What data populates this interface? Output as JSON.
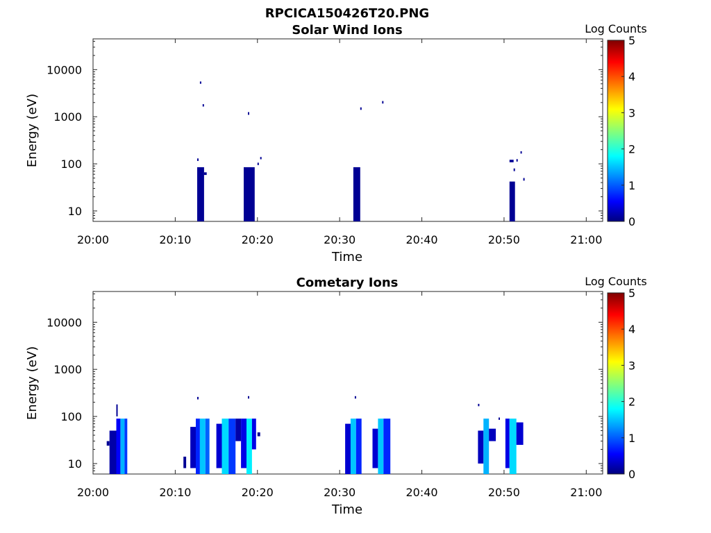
{
  "figure": {
    "title": "RPCICA150426T20.PNG"
  },
  "chart_data": [
    {
      "type": "heatmap",
      "title": "Solar Wind Ions",
      "xlabel": "Time",
      "ylabel": "Energy (eV)",
      "x_range": [
        "20:00",
        "21:02"
      ],
      "y_range_eV": [
        6,
        45000
      ],
      "y_scale": "log",
      "xticks": [
        "20:00",
        "20:10",
        "20:20",
        "20:30",
        "20:40",
        "20:50",
        "21:00"
      ],
      "yticks": [
        "10",
        "100",
        "1000",
        "10000"
      ],
      "grid": false,
      "colorbar": {
        "label": "Log Counts",
        "min": 0,
        "max": 5,
        "ticks": [
          "0",
          "1",
          "2",
          "3",
          "4",
          "5"
        ],
        "colormap": "jet"
      },
      "cells": [
        {
          "t": "20:12:40",
          "t_end": "20:13:30",
          "e_min": 6,
          "e_max": 85,
          "log_counts": 0.1
        },
        {
          "t": "20:12:40",
          "t_end": "20:12:50",
          "e_min": 115,
          "e_max": 130,
          "log_counts": 0.1
        },
        {
          "t": "20:13:30",
          "t_end": "20:13:50",
          "e_min": 58,
          "e_max": 66,
          "log_counts": 0.1
        },
        {
          "t": "20:13:00",
          "t_end": "20:13:10",
          "e_min": 5000,
          "e_max": 5600,
          "log_counts": 0.1
        },
        {
          "t": "20:13:20",
          "t_end": "20:13:30",
          "e_min": 1650,
          "e_max": 1850,
          "log_counts": 0.1
        },
        {
          "t": "20:18:20",
          "t_end": "20:19:40",
          "e_min": 6,
          "e_max": 85,
          "log_counts": 0.1
        },
        {
          "t": "20:18:50",
          "t_end": "20:19:00",
          "e_min": 1100,
          "e_max": 1250,
          "log_counts": 0.1
        },
        {
          "t": "20:20:00",
          "t_end": "20:20:10",
          "e_min": 94,
          "e_max": 106,
          "log_counts": 0.1
        },
        {
          "t": "20:20:20",
          "t_end": "20:20:30",
          "e_min": 125,
          "e_max": 140,
          "log_counts": 0.1
        },
        {
          "t": "20:31:40",
          "t_end": "20:32:30",
          "e_min": 6,
          "e_max": 85,
          "log_counts": 0.1
        },
        {
          "t": "20:32:30",
          "t_end": "20:32:40",
          "e_min": 1400,
          "e_max": 1580,
          "log_counts": 0.1
        },
        {
          "t": "20:35:10",
          "t_end": "20:35:20",
          "e_min": 1900,
          "e_max": 2150,
          "log_counts": 0.1
        },
        {
          "t": "20:50:40",
          "t_end": "20:51:20",
          "e_min": 6,
          "e_max": 42,
          "log_counts": 0.1
        },
        {
          "t": "20:50:40",
          "t_end": "20:51:10",
          "e_min": 108,
          "e_max": 122,
          "log_counts": 0.1
        },
        {
          "t": "20:51:10",
          "t_end": "20:51:20",
          "e_min": 70,
          "e_max": 80,
          "log_counts": 0.1
        },
        {
          "t": "20:51:30",
          "t_end": "20:51:40",
          "e_min": 112,
          "e_max": 126,
          "log_counts": 0.1
        },
        {
          "t": "20:52:00",
          "t_end": "20:52:10",
          "e_min": 165,
          "e_max": 185,
          "log_counts": 0.1
        },
        {
          "t": "20:52:20",
          "t_end": "20:52:30",
          "e_min": 44,
          "e_max": 50,
          "log_counts": 0.1
        }
      ]
    },
    {
      "type": "heatmap",
      "title": "Cometary Ions",
      "xlabel": "Time",
      "ylabel": "Energy (eV)",
      "x_range": [
        "20:00",
        "21:02"
      ],
      "y_range_eV": [
        6,
        45000
      ],
      "y_scale": "log",
      "xticks": [
        "20:00",
        "20:10",
        "20:20",
        "20:30",
        "20:40",
        "20:50",
        "21:00"
      ],
      "yticks": [
        "10",
        "100",
        "1000",
        "10000"
      ],
      "grid": false,
      "colorbar": {
        "label": "Log Counts",
        "min": 0,
        "max": 5,
        "ticks": [
          "0",
          "1",
          "2",
          "3",
          "4",
          "5"
        ],
        "colormap": "jet"
      },
      "cells": [
        {
          "t": "20:01:40",
          "t_end": "20:02:00",
          "e_min": 24,
          "e_max": 30,
          "log_counts": 0.1
        },
        {
          "t": "20:02:00",
          "t_end": "20:02:50",
          "e_min": 6,
          "e_max": 50,
          "log_counts": 0.2
        },
        {
          "t": "20:02:50",
          "t_end": "20:03:20",
          "e_min": 6,
          "e_max": 90,
          "log_counts": 0.6
        },
        {
          "t": "20:03:20",
          "t_end": "20:03:50",
          "e_min": 6,
          "e_max": 90,
          "log_counts": 1.5
        },
        {
          "t": "20:03:50",
          "t_end": "20:04:10",
          "e_min": 6,
          "e_max": 90,
          "log_counts": 0.9
        },
        {
          "t": "20:02:50",
          "t_end": "20:03:00",
          "e_min": 100,
          "e_max": 180,
          "log_counts": 0.1
        },
        {
          "t": "20:11:00",
          "t_end": "20:11:20",
          "e_min": 8,
          "e_max": 14,
          "log_counts": 0.1
        },
        {
          "t": "20:11:50",
          "t_end": "20:12:30",
          "e_min": 8,
          "e_max": 60,
          "log_counts": 0.3
        },
        {
          "t": "20:12:30",
          "t_end": "20:13:00",
          "e_min": 6,
          "e_max": 90,
          "log_counts": 0.8
        },
        {
          "t": "20:13:00",
          "t_end": "20:13:40",
          "e_min": 6,
          "e_max": 90,
          "log_counts": 1.6
        },
        {
          "t": "20:13:40",
          "t_end": "20:14:10",
          "e_min": 6,
          "e_max": 90,
          "log_counts": 1.1
        },
        {
          "t": "20:12:40",
          "t_end": "20:12:50",
          "e_min": 230,
          "e_max": 260,
          "log_counts": 0.1
        },
        {
          "t": "20:15:00",
          "t_end": "20:15:40",
          "e_min": 8,
          "e_max": 70,
          "log_counts": 0.4
        },
        {
          "t": "20:15:40",
          "t_end": "20:16:30",
          "e_min": 6,
          "e_max": 90,
          "log_counts": 1.7
        },
        {
          "t": "20:16:30",
          "t_end": "20:17:20",
          "e_min": 6,
          "e_max": 90,
          "log_counts": 0.9
        },
        {
          "t": "20:17:20",
          "t_end": "20:18:00",
          "e_min": 30,
          "e_max": 90,
          "log_counts": 0.2
        },
        {
          "t": "20:18:00",
          "t_end": "20:18:40",
          "e_min": 8,
          "e_max": 90,
          "log_counts": 0.5
        },
        {
          "t": "20:18:40",
          "t_end": "20:19:20",
          "e_min": 6,
          "e_max": 90,
          "log_counts": 1.8
        },
        {
          "t": "20:19:20",
          "t_end": "20:19:50",
          "e_min": 20,
          "e_max": 90,
          "log_counts": 0.5
        },
        {
          "t": "20:20:00",
          "t_end": "20:20:20",
          "e_min": 38,
          "e_max": 46,
          "log_counts": 0.1
        },
        {
          "t": "20:18:50",
          "t_end": "20:19:00",
          "e_min": 240,
          "e_max": 270,
          "log_counts": 0.1
        },
        {
          "t": "20:30:40",
          "t_end": "20:31:20",
          "e_min": 6,
          "e_max": 70,
          "log_counts": 0.4
        },
        {
          "t": "20:31:20",
          "t_end": "20:32:00",
          "e_min": 6,
          "e_max": 90,
          "log_counts": 1.6
        },
        {
          "t": "20:32:00",
          "t_end": "20:32:40",
          "e_min": 6,
          "e_max": 90,
          "log_counts": 0.8
        },
        {
          "t": "20:31:50",
          "t_end": "20:32:00",
          "e_min": 240,
          "e_max": 270,
          "log_counts": 0.1
        },
        {
          "t": "20:34:00",
          "t_end": "20:34:40",
          "e_min": 8,
          "e_max": 55,
          "log_counts": 0.4
        },
        {
          "t": "20:34:40",
          "t_end": "20:35:20",
          "e_min": 6,
          "e_max": 90,
          "log_counts": 1.6
        },
        {
          "t": "20:35:20",
          "t_end": "20:36:10",
          "e_min": 6,
          "e_max": 90,
          "log_counts": 0.8
        },
        {
          "t": "20:46:50",
          "t_end": "20:47:00",
          "e_min": 165,
          "e_max": 185,
          "log_counts": 0.1
        },
        {
          "t": "20:46:50",
          "t_end": "20:47:30",
          "e_min": 10,
          "e_max": 50,
          "log_counts": 0.3
        },
        {
          "t": "20:47:30",
          "t_end": "20:48:10",
          "e_min": 6,
          "e_max": 90,
          "log_counts": 1.5
        },
        {
          "t": "20:48:10",
          "t_end": "20:49:00",
          "e_min": 30,
          "e_max": 55,
          "log_counts": 0.3
        },
        {
          "t": "20:49:20",
          "t_end": "20:49:30",
          "e_min": 85,
          "e_max": 95,
          "log_counts": 0.1
        },
        {
          "t": "20:50:10",
          "t_end": "20:50:40",
          "e_min": 8,
          "e_max": 90,
          "log_counts": 0.5
        },
        {
          "t": "20:50:40",
          "t_end": "20:51:30",
          "e_min": 6,
          "e_max": 90,
          "log_counts": 1.7
        },
        {
          "t": "20:51:30",
          "t_end": "20:52:20",
          "e_min": 25,
          "e_max": 75,
          "log_counts": 0.4
        }
      ]
    }
  ]
}
